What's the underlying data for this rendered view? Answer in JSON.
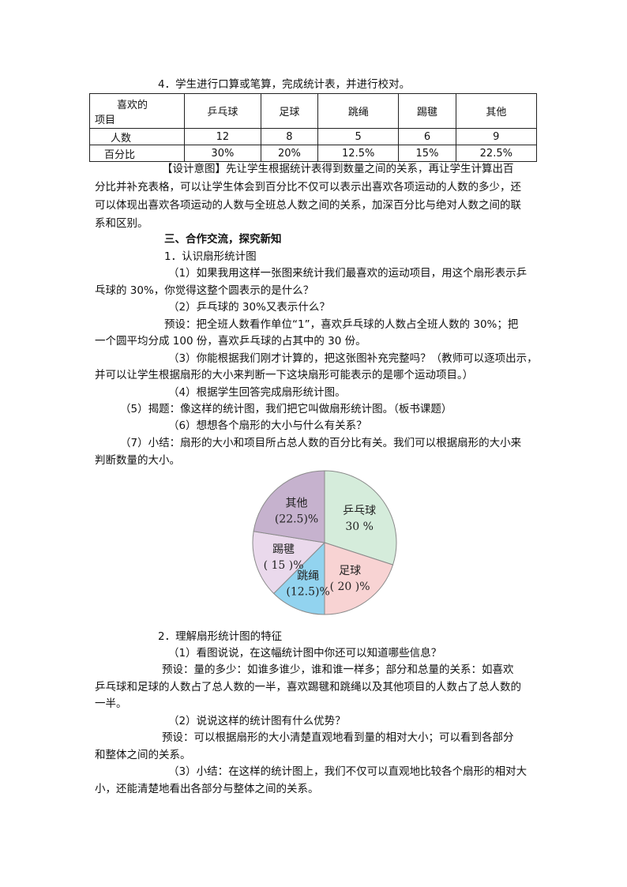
{
  "intro": "4．学生进行口算或笔算，完成统计表，并进行校对。",
  "table": {
    "header_label_lines": [
      "喜欢的",
      "项目"
    ],
    "columns": [
      "乒乓球",
      "足球",
      "跳绳",
      "踢毽",
      "其他"
    ],
    "rows": [
      {
        "label": "人数",
        "cells": [
          "12",
          "8",
          "5",
          "6",
          "9"
        ]
      },
      {
        "label": "百分比",
        "cells": [
          "30%",
          "20%",
          "12.5%",
          "15%",
          "22.5%"
        ]
      }
    ]
  },
  "lines_top": [
    "【设计意图】先让学生根据统计表得到数量之间的关系，再让学生计算出百",
    "分比并补充表格，可以让学生体会到百分比不仅可以表示出喜欢各项运动的人数的多少，还",
    "可以体现出喜欢各项运动的人数与全班总人数之间的关系，加深百分比与绝对人数之间的联",
    "系和区别。",
    "三、合作交流，探究新知",
    "1．认识扇形统计图",
    "（1）如果我用这样一张图来统计我们最喜欢的运动项目，用这个扇形表示乒",
    "乓球的 30%，你觉得这整个圆表示的是什么？",
    "（2）乒乓球的 30%又表示什么？",
    "预设：把全班人数看作单位“1”，喜欢乒乓球的人数占全班人数的 30%；把",
    "一个圆平均分成 100 份，喜欢乒乓球的占其中的 30 份。",
    "（3）你能根据我们刚才计算的，把这张图补充完整吗？（教师可以逐项出示，",
    "并可以让学生根据扇形的大小来判断一下这块扇形可能表示的是哪个运动项目。）",
    "（4）根据学生回答完成扇形统计图。",
    "（5）揭题：像这样的统计图，我们把它叫做扇形统计图。（板书课题）",
    "（6）想想各个扇形的大小与什么有关系？",
    "（7）小结：扇形的大小和项目所占总人数的百分比有关。我们可以根据扇形的大小来",
    "判断数量的大小。"
  ],
  "lines_bottom": [
    "2．理解扇形统计图的特征",
    "（1）看图说说，在这幅统计图中你还可以知道哪些信息？",
    "预设：量的多少：如谁多谁少，谁和谁一样多；部分和总量的关系：如喜欢",
    "乒乓球和足球的人数占了总人数的一半，喜欢踢毽和跳绳以及其他项目的人数占了总人数的",
    "一半。",
    "（2）说说这样的统计图有什么优势？",
    "预设：可以根据扇形的大小清楚直观地看到量的相对大小；可以看到各部分",
    "和整体之间的关系。",
    "（3）小结：在这样的统计图上，我们不仅可以直观地比较各个扇形的相对大",
    "小，还能清楚地看出各部分与整体之间的关系。"
  ],
  "chart_data": {
    "type": "pie",
    "start": "12 o'clock, clockwise",
    "slices": [
      {
        "name": "乒乓球",
        "value": 30,
        "label": "30 %",
        "color": "#d5ecdb"
      },
      {
        "name": "足球",
        "value": 20,
        "label": "( 20 )%",
        "color": "#f8d3d3"
      },
      {
        "name": "跳绳",
        "value": 12.5,
        "label": "(12.5)%",
        "color": "#92d3ef"
      },
      {
        "name": "踢毽",
        "value": 15,
        "label": "( 15 )%",
        "color": "#ead9ec"
      },
      {
        "name": "其他",
        "value": 22.5,
        "label": "(22.5)%",
        "color": "#c6b2ce"
      }
    ]
  }
}
